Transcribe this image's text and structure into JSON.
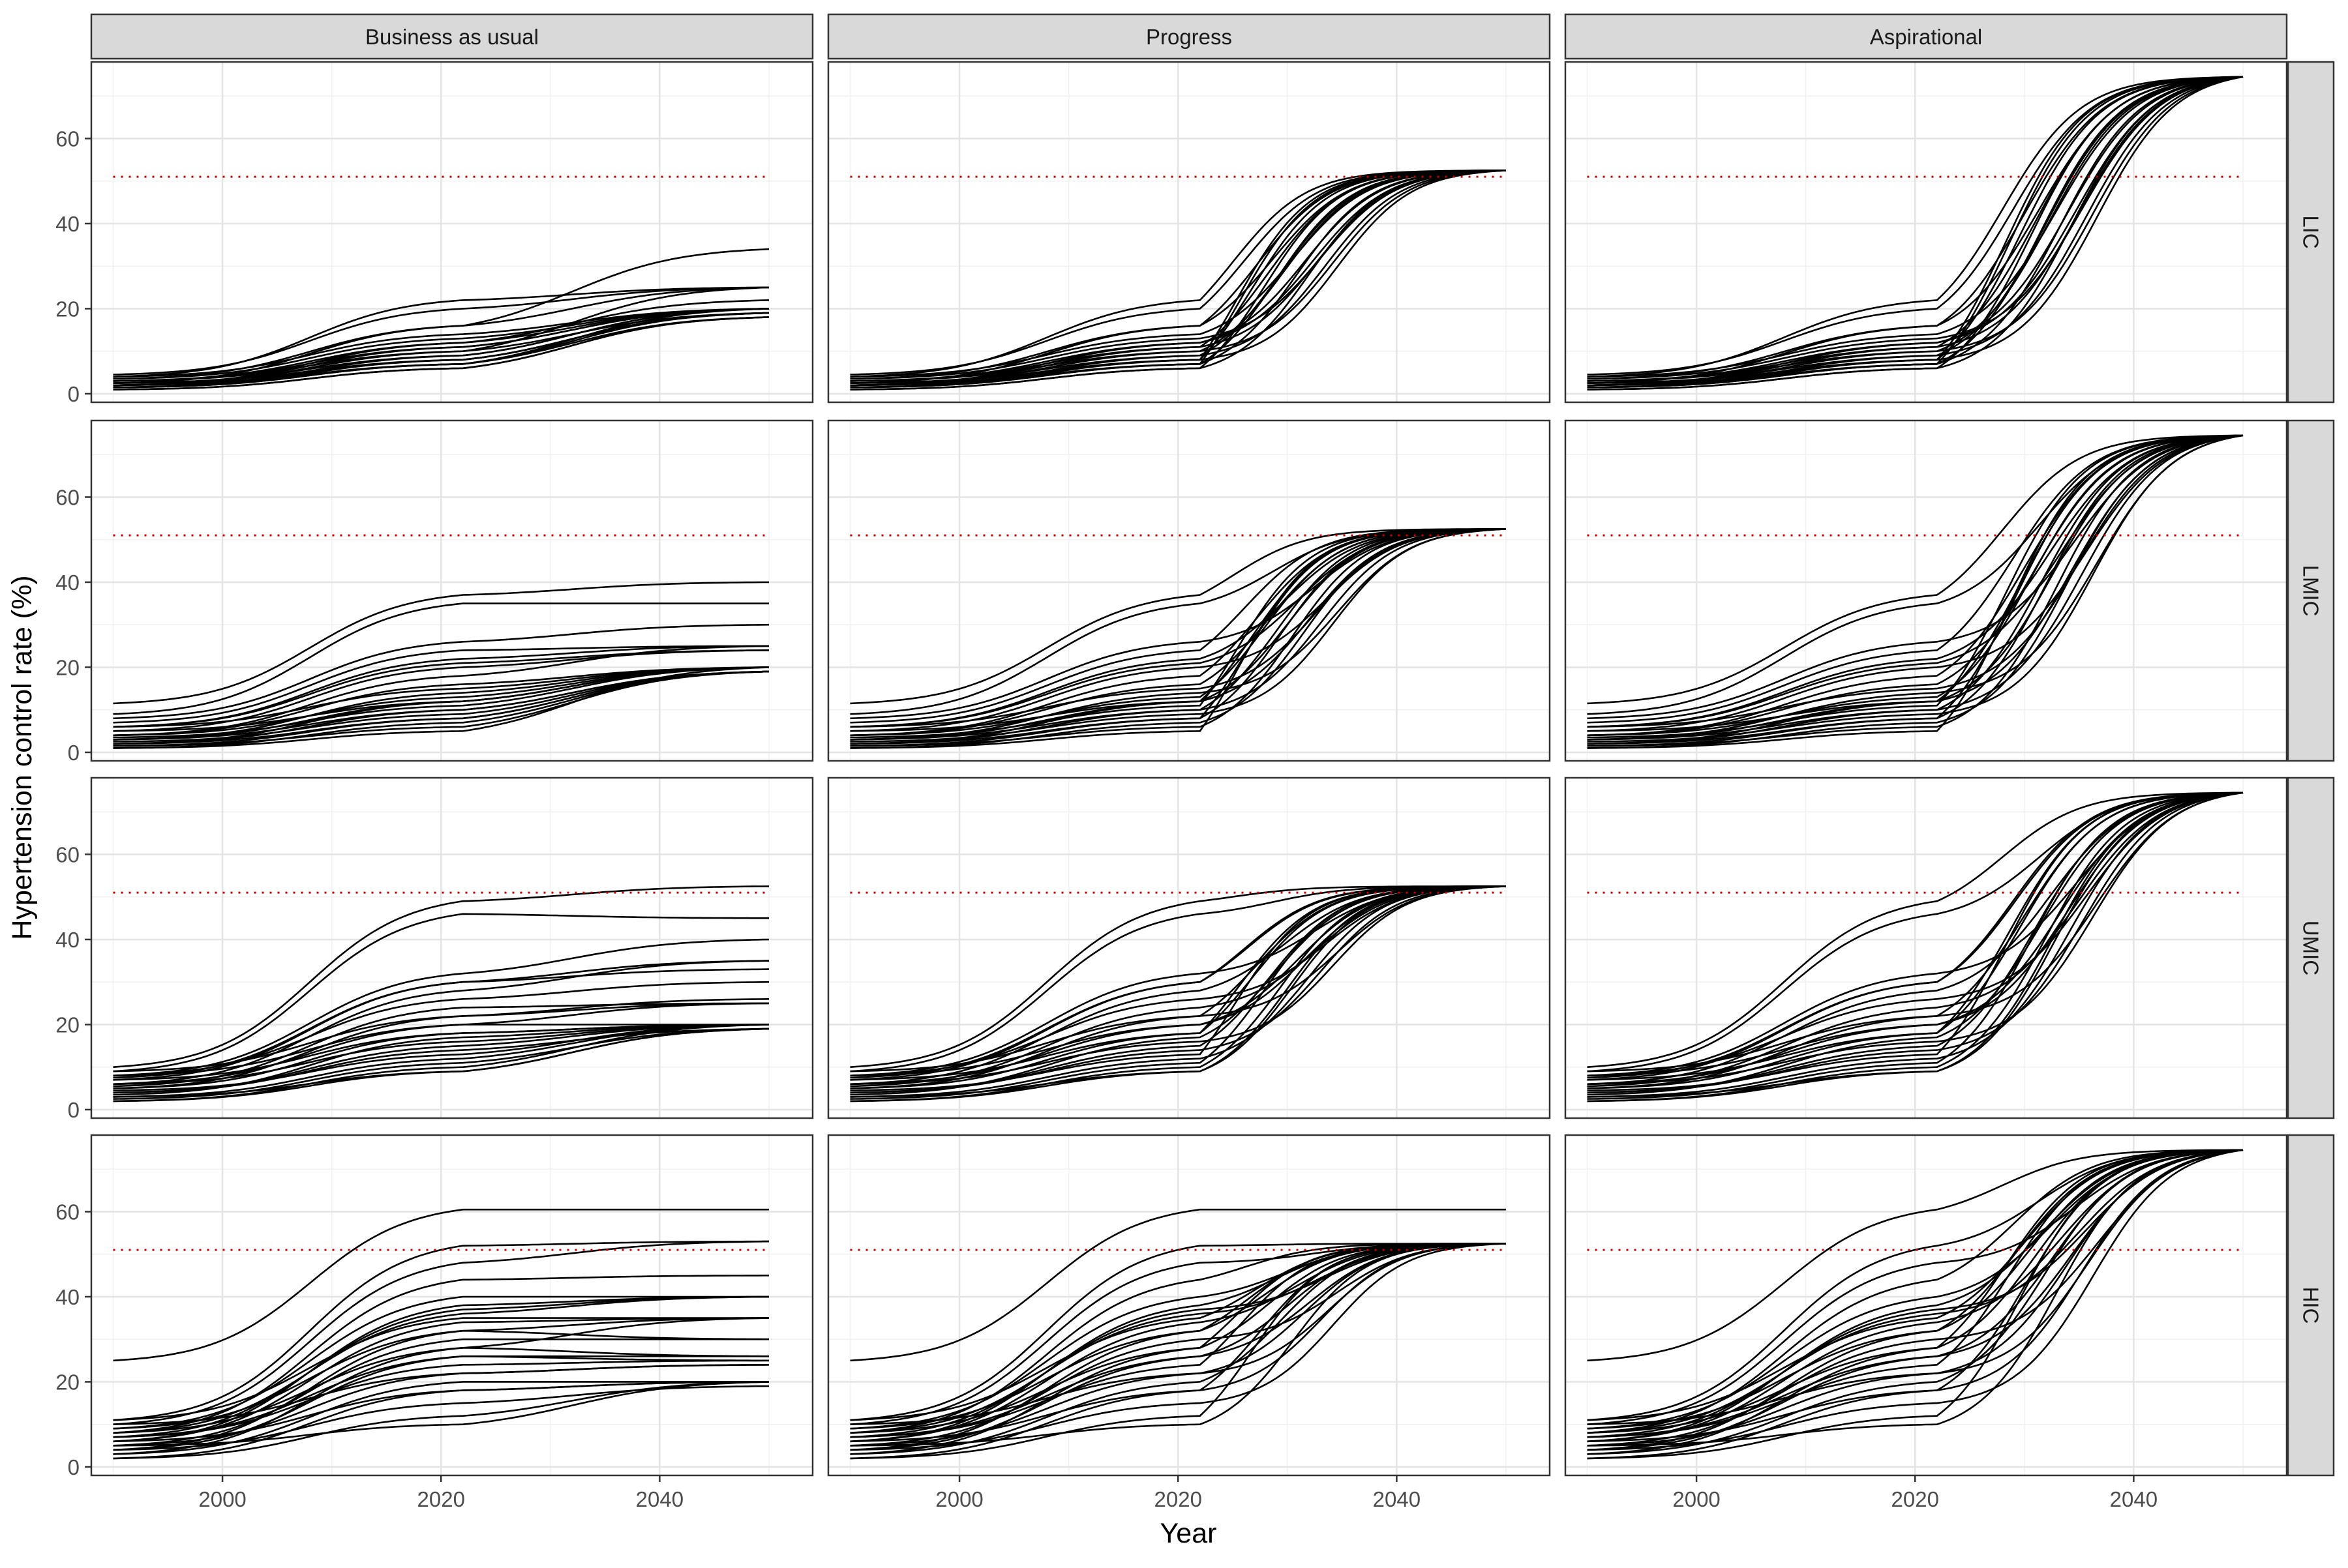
{
  "chart_data": {
    "type": "line",
    "xlabel": "Year",
    "ylabel": "Hypertension control rate (%)",
    "xlim": [
      1988,
      2054
    ],
    "ylim": [
      -2,
      78
    ],
    "x_ticks": [
      2000,
      2020,
      2040
    ],
    "y_ticks": [
      0,
      20,
      40,
      60
    ],
    "x_tick_labels": [
      "2000",
      "2020",
      "2040"
    ],
    "y_tick_labels": [
      "0",
      "20",
      "40",
      "60"
    ],
    "grid": true,
    "columns": [
      "Business as usual",
      "Progress",
      "Aspirational"
    ],
    "rows": [
      "LIC",
      "LMIC",
      "UMIC",
      "HIC"
    ],
    "reference_line": {
      "y": 51,
      "style": "dotted",
      "color": "#cc0000"
    },
    "line_color": "#000000",
    "x_range": [
      1990,
      2050
    ],
    "scenario_change_year": 2022,
    "targets": {
      "Business as usual": null,
      "Progress": 52.5,
      "Aspirational": 74.5
    },
    "scenario_timing": {
      "Progress": {
        "midpoint_range": [
          2025,
          2035
        ],
        "width": 3.4
      },
      "Aspirational": {
        "midpoint_range": [
          2028,
          2037
        ],
        "width": 3.6
      }
    },
    "series": {
      "LIC": [
        [
          4,
          22,
          2006,
          25
        ],
        [
          3.5,
          16,
          2009,
          25
        ],
        [
          2,
          12,
          2014,
          22
        ],
        [
          4.5,
          20,
          2011,
          25
        ],
        [
          3,
          10,
          2015,
          25
        ],
        [
          1.5,
          9,
          2013,
          20
        ],
        [
          2.5,
          16,
          2035,
          34
        ],
        [
          1.5,
          7,
          2016,
          20
        ],
        [
          2,
          8,
          2015,
          19
        ],
        [
          3,
          11,
          2013,
          20
        ],
        [
          1,
          6,
          2017,
          18
        ],
        [
          2,
          7,
          2016,
          19
        ],
        [
          2.5,
          9,
          2014,
          20
        ],
        [
          3.5,
          13,
          2012,
          20
        ],
        [
          1.5,
          8,
          2016,
          19
        ],
        [
          4,
          14,
          2011,
          20
        ],
        [
          2,
          10,
          2015,
          19
        ],
        [
          1,
          6,
          2018,
          18
        ],
        [
          3,
          12,
          2013,
          20
        ],
        [
          2.5,
          8,
          2016,
          19
        ],
        [
          1.5,
          7,
          2017,
          18
        ],
        [
          2,
          11,
          2014,
          20
        ]
      ],
      "LMIC": [
        [
          11.5,
          37,
          2018,
          40
        ],
        [
          9,
          35,
          2013,
          35
        ],
        [
          8,
          26,
          2024,
          30
        ],
        [
          7,
          24,
          2012,
          25
        ],
        [
          6,
          22,
          2016,
          25
        ],
        [
          5,
          20,
          2014,
          24
        ],
        [
          4,
          18,
          2013,
          25
        ],
        [
          6,
          21,
          2015,
          24
        ],
        [
          3,
          14,
          2020,
          20
        ],
        [
          4,
          16,
          2018,
          20
        ],
        [
          2,
          12,
          2024,
          20
        ],
        [
          1,
          5,
          2030,
          20
        ],
        [
          2,
          8,
          2026,
          19
        ],
        [
          3,
          10,
          2022,
          19
        ],
        [
          5,
          12,
          2025,
          20
        ],
        [
          1.5,
          6,
          2028,
          19
        ],
        [
          2.5,
          9,
          2024,
          19
        ],
        [
          4,
          13,
          2021,
          20
        ],
        [
          1,
          7,
          2027,
          19
        ],
        [
          3.5,
          11,
          2023,
          20
        ],
        [
          2,
          10,
          2025,
          19
        ],
        [
          6,
          15,
          2020,
          20
        ],
        [
          1.5,
          8,
          2027,
          19
        ],
        [
          3,
          12,
          2022,
          20
        ]
      ],
      "UMIC": [
        [
          10,
          49,
          2009,
          52.5
        ],
        [
          9,
          46,
          2012,
          45
        ],
        [
          8,
          32,
          2024,
          40
        ],
        [
          7,
          30,
          2012,
          35
        ],
        [
          6,
          28,
          2018,
          35
        ],
        [
          8,
          26,
          2016,
          30
        ],
        [
          9,
          22,
          2022,
          26
        ],
        [
          6,
          20,
          2020,
          25
        ],
        [
          5,
          22,
          2014,
          25
        ],
        [
          4,
          15,
          2026,
          20
        ],
        [
          3,
          12,
          2028,
          20
        ],
        [
          7,
          18,
          2016,
          20
        ],
        [
          2,
          10,
          2025,
          20
        ],
        [
          4,
          14,
          2022,
          19
        ],
        [
          5,
          18,
          2015,
          20
        ],
        [
          3,
          9,
          2028,
          19
        ],
        [
          6,
          16,
          2020,
          20
        ],
        [
          2.5,
          11,
          2026,
          19
        ],
        [
          8,
          20,
          2015,
          20
        ],
        [
          4.5,
          13,
          2024,
          20
        ],
        [
          3.5,
          17,
          2018,
          20
        ],
        [
          5.5,
          24,
          2014,
          25
        ],
        [
          7.5,
          30,
          2016,
          33
        ],
        [
          2,
          9,
          2024,
          19
        ]
      ],
      "HIC": [
        [
          25,
          60.5,
          2000,
          60.5
        ],
        [
          11,
          52,
          2006,
          53
        ],
        [
          10,
          48,
          2012,
          53
        ],
        [
          8,
          44,
          2014,
          45
        ],
        [
          9,
          40,
          2018,
          40
        ],
        [
          7,
          37,
          2016,
          40
        ],
        [
          11,
          35,
          2012,
          35
        ],
        [
          6,
          34,
          2014,
          35
        ],
        [
          5,
          30,
          2016,
          30
        ],
        [
          8,
          28,
          2012,
          26
        ],
        [
          4,
          26,
          2018,
          25
        ],
        [
          7,
          24,
          2014,
          25
        ],
        [
          3,
          20,
          2018,
          20
        ],
        [
          6,
          18,
          2020,
          20
        ],
        [
          2,
          12,
          2020,
          20
        ],
        [
          5,
          10,
          2014,
          20
        ],
        [
          4,
          15,
          2022,
          19
        ],
        [
          9,
          32,
          2010,
          30
        ],
        [
          10,
          22,
          2018,
          24
        ],
        [
          3,
          28,
          2010,
          35
        ],
        [
          6,
          38,
          2012,
          40
        ],
        [
          8,
          36,
          2016,
          40
        ],
        [
          4,
          32,
          2014,
          35
        ],
        [
          7,
          26,
          2020,
          26
        ],
        [
          5,
          22,
          2016,
          24
        ],
        [
          2,
          18,
          2022,
          20
        ]
      ]
    }
  }
}
